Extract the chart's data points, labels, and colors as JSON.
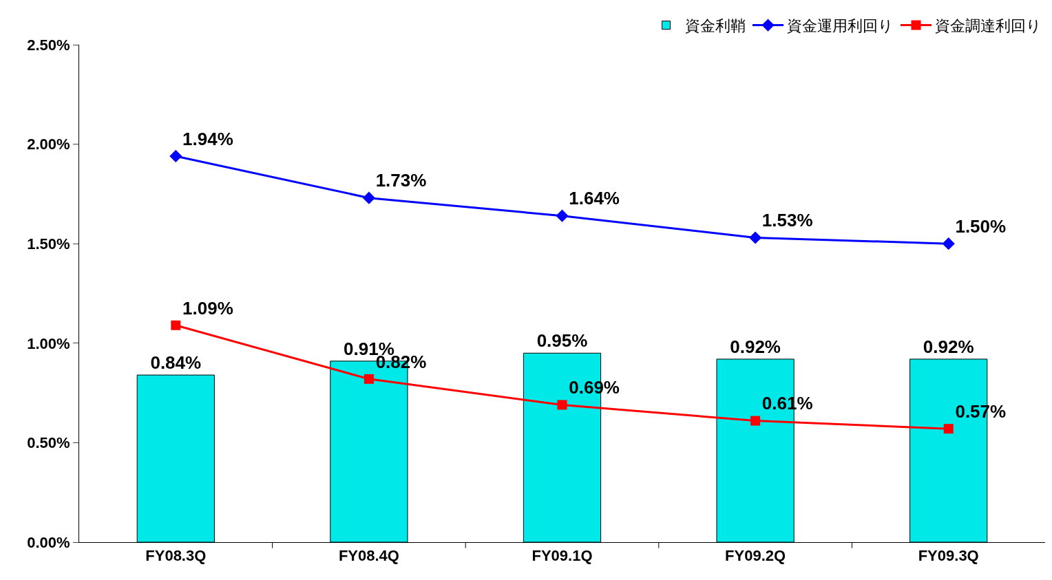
{
  "chart_data": {
    "type": "bar",
    "categories": [
      "FY08.3Q",
      "FY08.4Q",
      "FY09.1Q",
      "FY09.2Q",
      "FY09.3Q"
    ],
    "series": [
      {
        "name": "資金利鞘",
        "color": "#00e8e8",
        "values": [
          0.84,
          0.91,
          0.95,
          0.92,
          0.92
        ],
        "value_labels": [
          "0.84%",
          "0.91%",
          "0.95%",
          "0.92%",
          "0.92%"
        ]
      },
      {
        "name": "資金運用利回り",
        "type": "line",
        "color": "#0000ff",
        "marker": "diamond",
        "values": [
          1.94,
          1.73,
          1.64,
          1.53,
          1.5
        ],
        "value_labels": [
          "1.94%",
          "1.73%",
          "1.64%",
          "1.53%",
          "1.50%"
        ]
      },
      {
        "name": "資金調達利回り",
        "type": "line",
        "color": "#ff0000",
        "marker": "square",
        "values": [
          1.09,
          0.82,
          0.69,
          0.61,
          0.57
        ],
        "value_labels": [
          "1.09%",
          "0.82%",
          "0.69%",
          "0.61%",
          "0.57%"
        ]
      }
    ],
    "ylim": [
      0,
      2.5
    ],
    "yticks": [
      {
        "value": 0,
        "label": "0.00%"
      },
      {
        "value": 0.5,
        "label": "0.50%"
      },
      {
        "value": 1.0,
        "label": "1.00%"
      },
      {
        "value": 1.5,
        "label": "1.50%"
      },
      {
        "value": 2.0,
        "label": "2.00%"
      },
      {
        "value": 2.5,
        "label": "2.50%"
      }
    ],
    "legend": "top right"
  }
}
